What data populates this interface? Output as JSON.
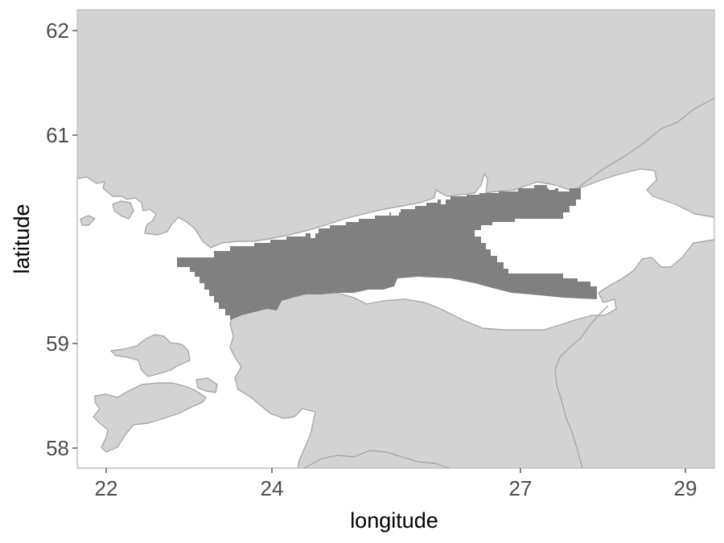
{
  "chart_data": {
    "type": "map",
    "xlabel": "longitude",
    "ylabel": "latitude",
    "x_ticks": [
      "22",
      "24",
      "27",
      "29"
    ],
    "y_ticks": [
      "62",
      "61",
      "59",
      "58"
    ],
    "xlim": [
      21.6,
      29.35
    ],
    "ylim": [
      57.9,
      62.3
    ],
    "layers": [
      {
        "name": "land",
        "color": "#d3d3d3",
        "outline": "#a8a8a8"
      },
      {
        "name": "highlighted-sea-area",
        "color": "#808080"
      },
      {
        "name": "sea",
        "color": "#ffffff"
      }
    ],
    "panel_background": "#d3d3d3",
    "grid": false
  },
  "colors": {
    "land": "#d3d3d3",
    "highlight": "#808080",
    "sea": "#ffffff",
    "panel_border": "#b3b3b3"
  }
}
